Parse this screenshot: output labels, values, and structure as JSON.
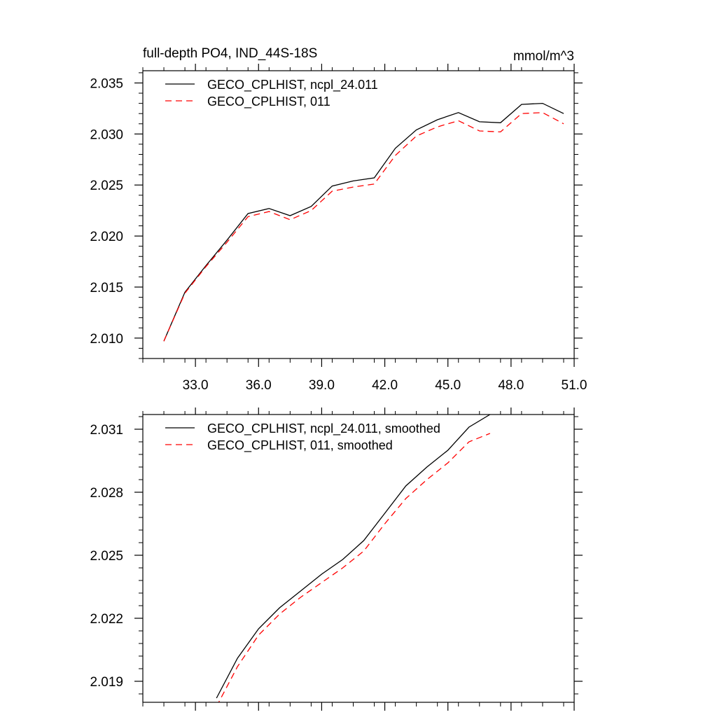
{
  "chart_data": [
    {
      "type": "line",
      "title": "full-depth PO4, IND_44S-18S",
      "units": "mmol/m^3",
      "xlabel": "",
      "ylabel": "",
      "xlim": [
        30.5,
        51.0
      ],
      "ylim": [
        2.008,
        2.0362
      ],
      "xticks": [
        33.0,
        36.0,
        39.0,
        42.0,
        45.0,
        48.0,
        51.0
      ],
      "xtick_labels": [
        "33.0",
        "36.0",
        "39.0",
        "42.0",
        "45.0",
        "48.0",
        "51.0"
      ],
      "yticks": [
        2.01,
        2.015,
        2.02,
        2.025,
        2.03,
        2.035
      ],
      "ytick_labels": [
        "2.010",
        "2.015",
        "2.020",
        "2.025",
        "2.030",
        "2.035"
      ],
      "legend_position": "top-left",
      "x": [
        31.5,
        32.5,
        33.5,
        34.5,
        35.5,
        36.5,
        37.5,
        38.5,
        39.5,
        40.5,
        41.5,
        42.5,
        43.5,
        44.5,
        45.5,
        46.5,
        47.5,
        48.5,
        49.5,
        50.5
      ],
      "series": [
        {
          "name": "GECO_CPLHIST, ncpl_24.011",
          "color": "#000000",
          "dash": "solid",
          "values": [
            2.0097,
            2.0145,
            2.0171,
            2.0196,
            2.0222,
            2.0227,
            2.022,
            2.0229,
            2.0249,
            2.0254,
            2.0257,
            2.0286,
            2.0304,
            2.0314,
            2.0321,
            2.0312,
            2.0311,
            2.0329,
            2.033,
            2.032
          ]
        },
        {
          "name": "GECO_CPLHIST, 011",
          "color": "#ff0000",
          "dash": "dashed",
          "values": [
            2.0097,
            2.0144,
            2.017,
            2.0194,
            2.0219,
            2.0224,
            2.0216,
            2.0225,
            2.0244,
            2.0248,
            2.0251,
            2.0279,
            2.0298,
            2.0307,
            2.0313,
            2.0303,
            2.0302,
            2.032,
            2.0321,
            2.031
          ]
        }
      ]
    },
    {
      "type": "line",
      "title": "",
      "xlabel": "",
      "ylabel": "",
      "xlim": [
        30.5,
        51.0
      ],
      "ylim": [
        2.018,
        2.0317
      ],
      "xticks": [
        33.0,
        36.0,
        39.0,
        42.0,
        45.0,
        48.0,
        51.0
      ],
      "yticks": [
        2.019,
        2.022,
        2.025,
        2.028,
        2.031
      ],
      "ytick_labels": [
        "2.019",
        "2.022",
        "2.025",
        "2.028",
        "2.031"
      ],
      "legend_position": "top-left",
      "x": [
        34.0,
        35.0,
        36.0,
        37.0,
        38.0,
        39.0,
        40.0,
        41.0,
        42.0,
        43.0,
        44.0,
        45.0,
        46.0,
        47.0
      ],
      "series": [
        {
          "name": "GECO_CPLHIST, ncpl_24.011, smoothed",
          "color": "#000000",
          "dash": "solid",
          "values": [
            2.0182,
            2.0201,
            2.0215,
            2.0225,
            2.0233,
            2.0241,
            2.0248,
            2.0257,
            2.027,
            2.0283,
            2.0292,
            2.03,
            2.0311,
            2.0317
          ]
        },
        {
          "name": "GECO_CPLHIST, 011, smoothed",
          "color": "#ff0000",
          "dash": "dashed",
          "values": [
            2.0178,
            2.0197,
            2.0212,
            2.0222,
            2.023,
            2.0237,
            2.0244,
            2.0252,
            2.0265,
            2.0277,
            2.0286,
            2.0294,
            2.0304,
            2.0308
          ]
        }
      ]
    }
  ]
}
